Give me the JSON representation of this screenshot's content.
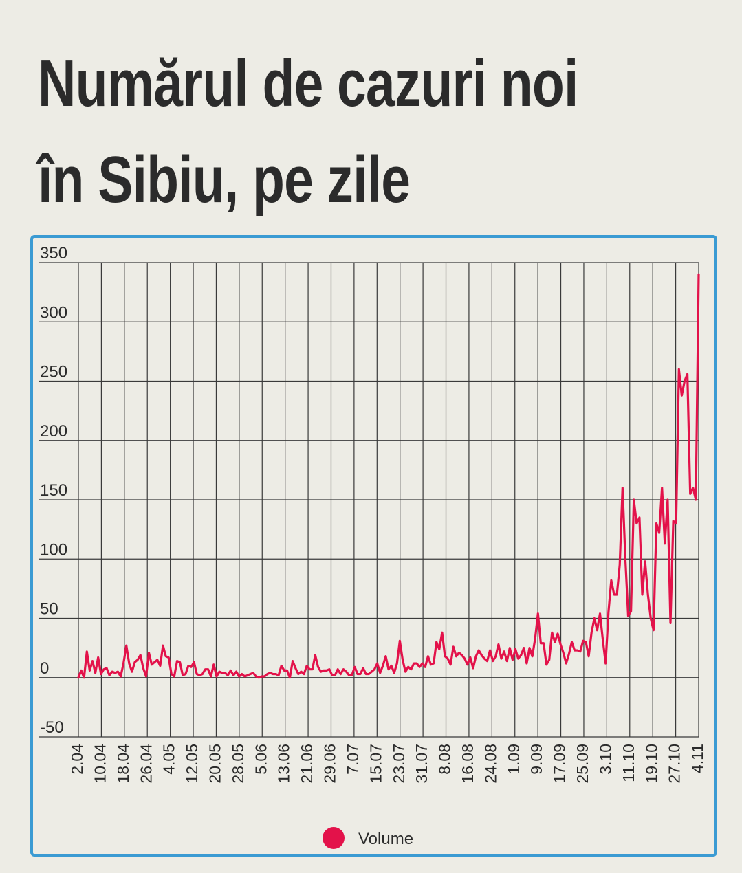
{
  "title": "Numărul de cazuri noi în Sibiu, pe zile",
  "colors": {
    "line": "#e3124a",
    "grid": "#3a3a3a",
    "panel_border": "#3b9bd3",
    "background": "#edece5"
  },
  "chart_data": {
    "type": "line",
    "title": "Numărul de cazuri noi în Sibiu, pe zile",
    "x_tick_labels": [
      "2.04",
      "10.04",
      "18.04",
      "26.04",
      "4.05",
      "12.05",
      "20.05",
      "28.05",
      "5.06",
      "13.06",
      "21.06",
      "29.06",
      "7.07",
      "15.07",
      "23.07",
      "31.07",
      "8.08",
      "16.08",
      "24.08",
      "1.09",
      "9.09",
      "17.09",
      "25.09",
      "3.10",
      "11.10",
      "19.10",
      "27.10",
      "4.11"
    ],
    "y_ticks": [
      350,
      300,
      250,
      200,
      150,
      100,
      50,
      0,
      -50
    ],
    "ylim": [
      -50,
      350
    ],
    "grid": true,
    "legend_position": "bottom-center",
    "series": [
      {
        "name": "Volume",
        "values": [
          0,
          6,
          0,
          22,
          6,
          14,
          4,
          17,
          3,
          7,
          8,
          2,
          5,
          4,
          5,
          1,
          12,
          27,
          12,
          5,
          13,
          15,
          19,
          8,
          1,
          21,
          11,
          13,
          15,
          10,
          27,
          18,
          17,
          3,
          1,
          14,
          13,
          2,
          3,
          10,
          9,
          13,
          3,
          2,
          3,
          7,
          7,
          1,
          11,
          1,
          5,
          4,
          4,
          2,
          6,
          2,
          5,
          1,
          3,
          1,
          2,
          3,
          4,
          1,
          0,
          1,
          1,
          3,
          4,
          3,
          3,
          2,
          10,
          6,
          6,
          0,
          14,
          8,
          3,
          5,
          3,
          10,
          7,
          7,
          19,
          9,
          5,
          6,
          6,
          7,
          2,
          2,
          7,
          3,
          7,
          5,
          2,
          2,
          9,
          3,
          3,
          8,
          3,
          3,
          5,
          7,
          12,
          4,
          10,
          18,
          7,
          10,
          4,
          12,
          31,
          15,
          5,
          9,
          7,
          12,
          12,
          9,
          12,
          9,
          18,
          11,
          12,
          30,
          24,
          38,
          18,
          16,
          11,
          26,
          18,
          21,
          19,
          16,
          11,
          17,
          8,
          18,
          23,
          19,
          16,
          14,
          23,
          14,
          18,
          28,
          16,
          22,
          14,
          25,
          15,
          24,
          16,
          19,
          25,
          12,
          25,
          18,
          33,
          54,
          29,
          29,
          11,
          15,
          38,
          30,
          37,
          28,
          21,
          12,
          20,
          30,
          23,
          23,
          22,
          31,
          30,
          18,
          38,
          50,
          40,
          54,
          32,
          12,
          55,
          82,
          70,
          70,
          95,
          160,
          100,
          52,
          56,
          150,
          130,
          135,
          70,
          98,
          70,
          50,
          40,
          130,
          122,
          160,
          113,
          150,
          46,
          132,
          130,
          260,
          238,
          250,
          256,
          155,
          160,
          150,
          340
        ]
      }
    ]
  }
}
